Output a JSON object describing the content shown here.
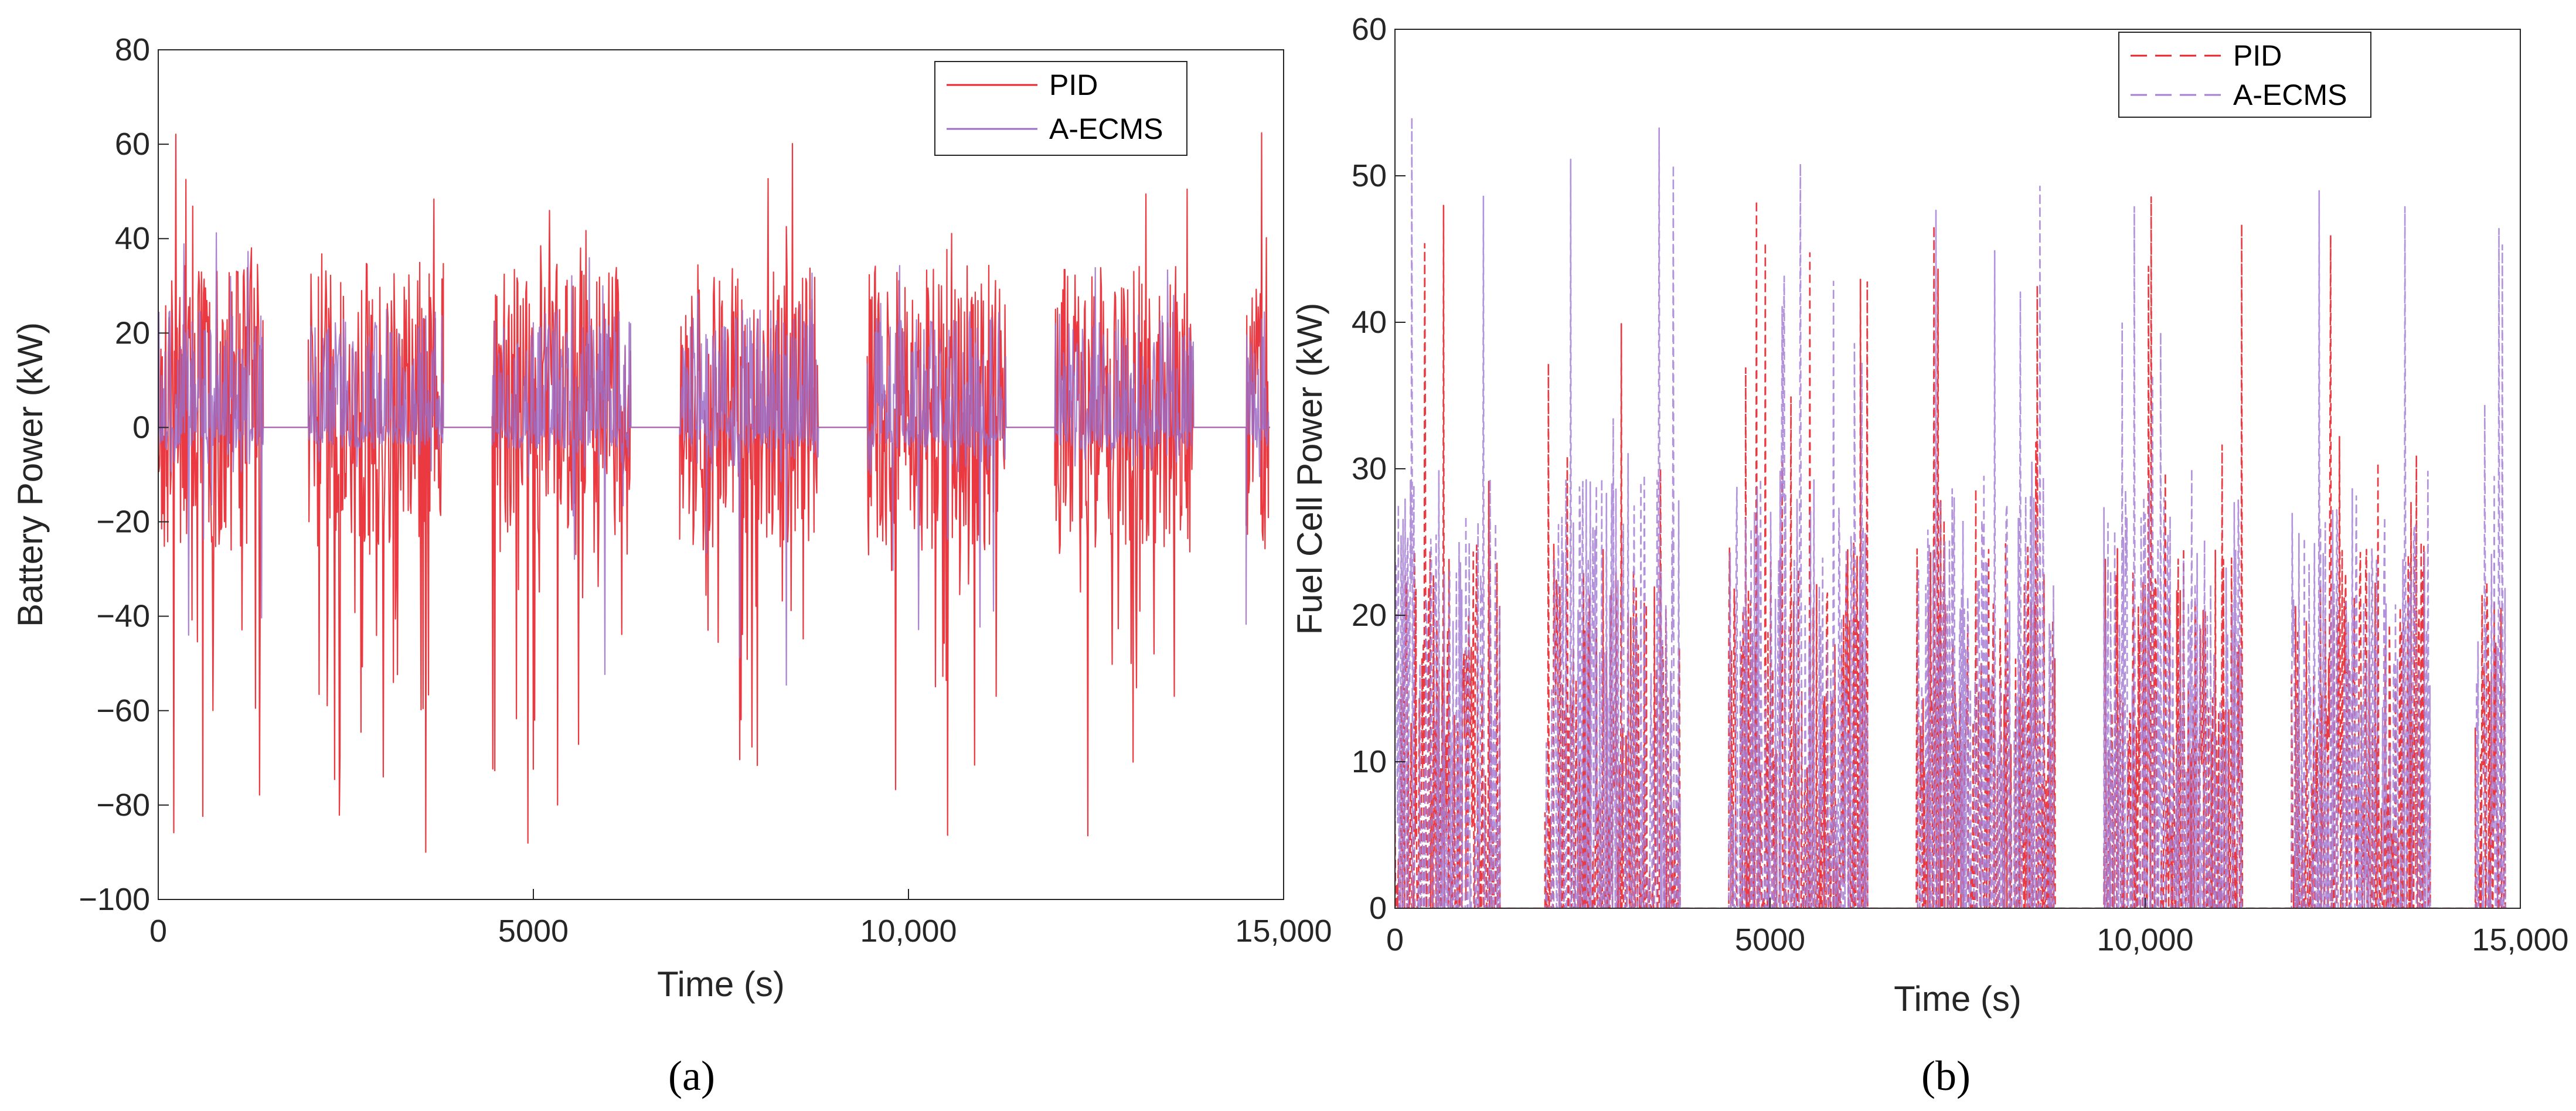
{
  "chart_data": [
    {
      "type": "line",
      "panel_label": "(a)",
      "xlabel": "Time (s)",
      "ylabel": "Battery Power (kW)",
      "xlim": [
        0,
        15000
      ],
      "ylim": [
        -100,
        80
      ],
      "xticks": [
        0,
        5000,
        10000,
        15000
      ],
      "xtick_labels": [
        "0",
        "5000",
        "10,000",
        "15,000"
      ],
      "yticks": [
        80,
        60,
        40,
        20,
        0,
        -20,
        -40,
        -60,
        -80,
        -100
      ],
      "ytick_labels": [
        "80",
        "60",
        "40",
        "20",
        "0",
        "−20",
        "−40",
        "−60",
        "−80",
        "−100"
      ],
      "legend_position": "top-right",
      "active_segments": [
        [
          0,
          1400
        ],
        [
          2000,
          3800
        ],
        [
          4450,
          6300
        ],
        [
          6950,
          8800
        ],
        [
          9450,
          11300
        ],
        [
          11950,
          13800
        ],
        [
          14500,
          14800
        ]
      ],
      "series": [
        {
          "name": "PID",
          "color": "#e8232b",
          "style": "solid",
          "approx_envelope": {
            "max": 63,
            "min": -90,
            "typical_pos": 35,
            "typical_neg": -60
          }
        },
        {
          "name": "A-ECMS",
          "color": "#9b6cc4",
          "style": "solid",
          "approx_envelope": {
            "max": 42,
            "min": -55,
            "typical_pos": 25,
            "typical_neg": -10
          }
        }
      ]
    },
    {
      "type": "line",
      "panel_label": "(b)",
      "xlabel": "Time (s)",
      "ylabel": "Fuel Cell Power (kW)",
      "xlim": [
        0,
        15000
      ],
      "ylim": [
        0,
        60
      ],
      "xticks": [
        0,
        5000,
        10000,
        15000
      ],
      "xtick_labels": [
        "0",
        "5000",
        "10,000",
        "15,000"
      ],
      "yticks": [
        60,
        50,
        40,
        30,
        20,
        10,
        0
      ],
      "ytick_labels": [
        "60",
        "50",
        "40",
        "30",
        "20",
        "10",
        "0"
      ],
      "legend_position": "top-right",
      "active_segments": [
        [
          0,
          1400
        ],
        [
          2000,
          3800
        ],
        [
          4450,
          6300
        ],
        [
          6950,
          8800
        ],
        [
          9450,
          11300
        ],
        [
          11950,
          13800
        ],
        [
          14400,
          14800
        ]
      ],
      "series": [
        {
          "name": "PID",
          "color": "#e8232b",
          "style": "dashed",
          "approx_envelope": {
            "max": 49,
            "min": 0,
            "typical_pos": 25
          }
        },
        {
          "name": "A-ECMS",
          "color": "#a57fd3",
          "style": "dashed",
          "approx_envelope": {
            "max": 55,
            "min": 0,
            "typical_pos": 30
          }
        }
      ]
    }
  ]
}
